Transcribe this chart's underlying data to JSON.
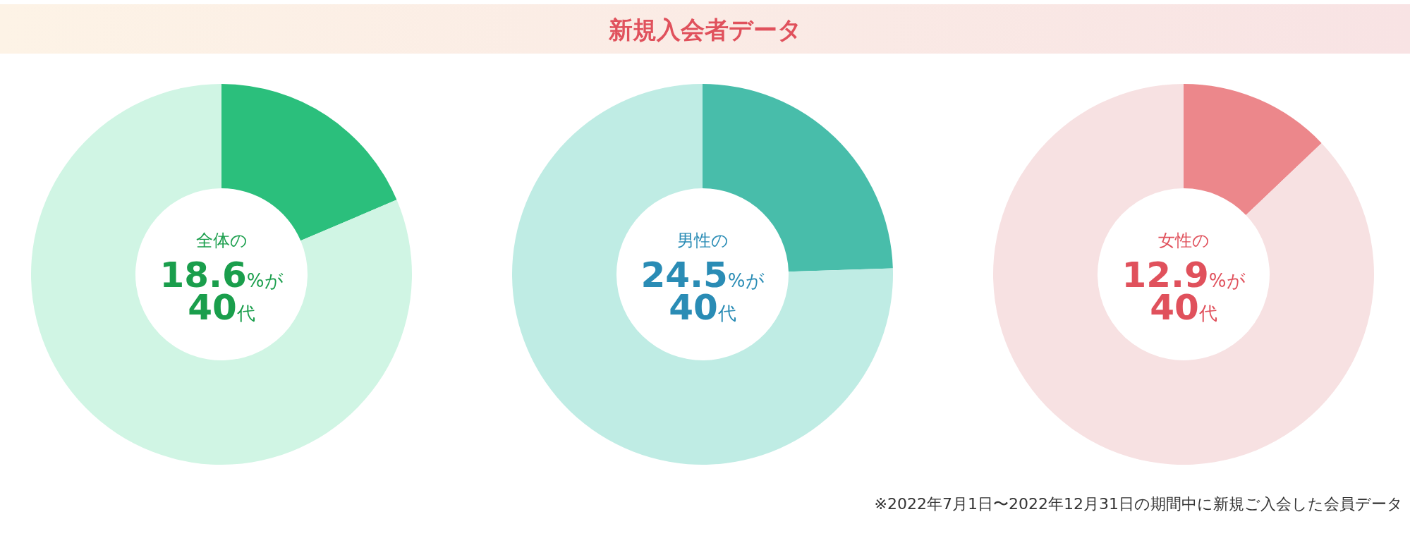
{
  "chart_data": [
    {
      "type": "other",
      "title": "新規入会者データ",
      "annotations": [
        "※2022年7月1日〜2022年12月31日の期間中に新規ご入会した会員データ"
      ]
    },
    {
      "type": "donut",
      "title": "全体の",
      "annotations": [
        "18.6%が",
        "40代"
      ],
      "categories": [
        null,
        null
      ],
      "values": [
        18.6,
        81.4
      ],
      "colors": [
        "#2bbf7c",
        "#d0f5e4"
      ]
    },
    {
      "type": "donut",
      "title": "男性の",
      "annotations": [
        "24.5%が",
        "40代"
      ],
      "categories": [
        null,
        null
      ],
      "values": [
        24.5,
        75.5
      ],
      "colors": [
        "#48bdaa",
        "#bfece4"
      ]
    },
    {
      "type": "donut",
      "title": "女性の",
      "annotations": [
        "12.9%が",
        "40代"
      ],
      "categories": [
        null,
        null
      ],
      "values": [
        12.9,
        87.1
      ],
      "colors": [
        "#ec878b",
        "#f7e1e2"
      ]
    }
  ]
}
